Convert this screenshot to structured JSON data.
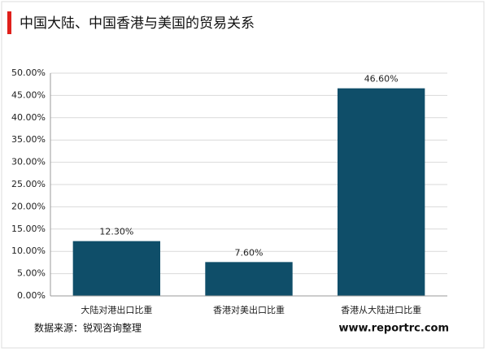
{
  "chart_data": {
    "type": "bar",
    "title": "中国大陆、中国香港与美国的贸易关系",
    "categories": [
      "大陆对港出口比重",
      "香港对美出口比重",
      "香港从大陆进口比重"
    ],
    "values": [
      12.3,
      7.6,
      46.6
    ],
    "value_labels": [
      "12.30%",
      "7.60%",
      "46.60%"
    ],
    "color": "#0f4e69",
    "ylim": [
      0,
      50
    ],
    "yticks": [
      {
        "value": 0,
        "label": "0.00%"
      },
      {
        "value": 5,
        "label": "5.00%"
      },
      {
        "value": 10,
        "label": "10.00%"
      },
      {
        "value": 15,
        "label": "15.00%"
      },
      {
        "value": 20,
        "label": "20.00%"
      },
      {
        "value": 25,
        "label": "25.00%"
      },
      {
        "value": 30,
        "label": "30.00%"
      },
      {
        "value": 35,
        "label": "35.00%"
      },
      {
        "value": 40,
        "label": "40.00%"
      },
      {
        "value": 45,
        "label": "45.00%"
      },
      {
        "value": 50,
        "label": "50.00%"
      }
    ],
    "grid": true,
    "source": "数据来源：锐观咨询整理",
    "website": "www.reportrc.com"
  }
}
